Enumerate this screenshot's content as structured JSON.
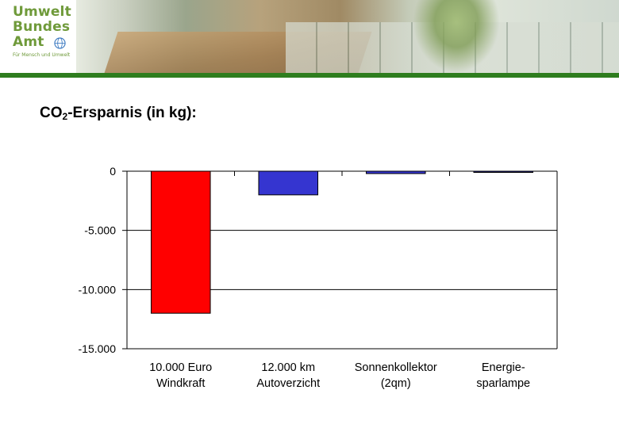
{
  "header": {
    "logo_lines": [
      "Umwelt",
      "Bundes",
      "Amt"
    ],
    "logo_tagline": "Für Mensch und Umwelt"
  },
  "slide": {
    "title_prefix": "CO",
    "title_sub": "2",
    "title_suffix": "-Ersparnis (in kg):"
  },
  "colors": {
    "header_green": "#2e7d1e",
    "logo_green": "#6f9a3a"
  },
  "chart_data": {
    "type": "bar",
    "categories": [
      [
        "10.000 Euro",
        "Windkraft"
      ],
      [
        "12.000 km",
        "Autoverzicht"
      ],
      [
        "Sonnenkollektor",
        "(2qm)"
      ],
      [
        "Energie-",
        "sparlampe"
      ]
    ],
    "values": [
      -12000,
      -2000,
      -200,
      -80
    ],
    "colors": [
      "#ff0000",
      "#3535d0",
      "#3535d0",
      "#1a1a7a"
    ],
    "ylim": [
      -15000,
      0
    ],
    "yticks": [
      0,
      -5000,
      -10000,
      -15000
    ],
    "ytick_labels": [
      "0",
      "-5.000",
      "-10.000",
      "-15.000"
    ],
    "grid": true,
    "title": "",
    "xlabel": "",
    "ylabel": ""
  }
}
